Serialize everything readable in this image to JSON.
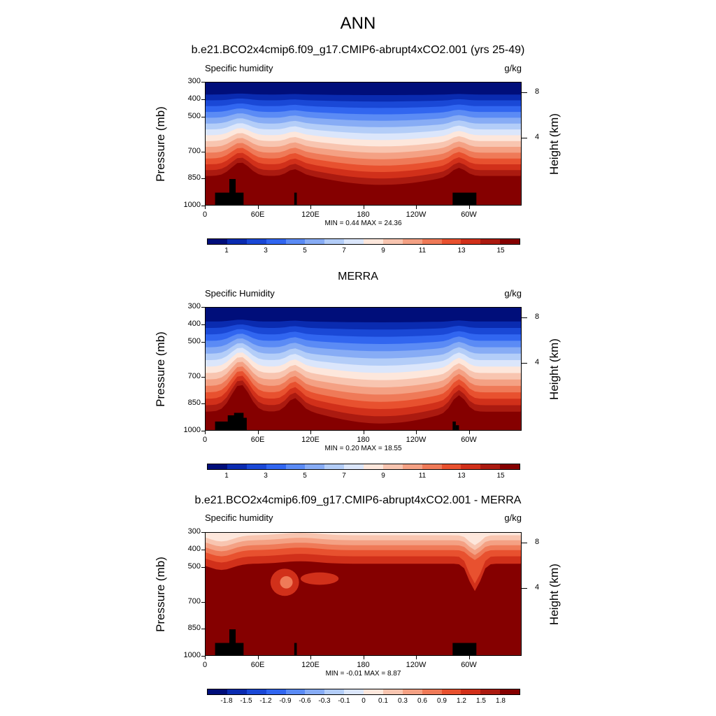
{
  "main_title": "ANN",
  "colors": {
    "abs_scale": [
      "#000e7a",
      "#0a2bb0",
      "#1a48d6",
      "#3166f0",
      "#5b8bf5",
      "#87acf5",
      "#b3cdf8",
      "#dbe6fb",
      "#fde7dc",
      "#f8c5b0",
      "#f4a184",
      "#ef7a58",
      "#e8512f",
      "#d1301a",
      "#ab1a10",
      "#850000"
    ],
    "diff_scale": [
      "#000e7a",
      "#0a2bb0",
      "#1a48d6",
      "#3166f0",
      "#5b8bf5",
      "#87acf5",
      "#b3cdf8",
      "#dbe6fb",
      "#fde7dc",
      "#f8c5b0",
      "#f4a184",
      "#ef7a58",
      "#e8512f",
      "#d1301a",
      "#ab1a10",
      "#850000"
    ],
    "topography": "#000000"
  },
  "panels": [
    {
      "title": "b.e21.BCO2x4cmip6.f09_g17.CMIP6-abrupt4xCO2.001 (yrs 25-49)",
      "left_label": "Specific humidity",
      "right_label": "g/kg",
      "minmax": "MIN =   0.44  MAX =  24.36",
      "y_axis_title": "Pressure (mb)",
      "y2_axis_title": "Height (km)",
      "cbar_labels": [
        "1",
        "3",
        "5",
        "7",
        "9",
        "11",
        "13",
        "15"
      ]
    },
    {
      "title": "MERRA",
      "left_label": "Specific Humidity",
      "right_label": "g/kg",
      "minmax": "MIN =   0.20  MAX =  18.55",
      "y_axis_title": "Pressure (mb)",
      "y2_axis_title": "Height (km)",
      "cbar_labels": [
        "1",
        "3",
        "5",
        "7",
        "9",
        "11",
        "13",
        "15"
      ]
    },
    {
      "title": "b.e21.BCO2x4cmip6.f09_g17.CMIP6-abrupt4xCO2.001 - MERRA",
      "left_label": "Specific humidity",
      "right_label": "g/kg",
      "minmax": "MIN =  -0.01  MAX =   8.87",
      "y_axis_title": "Pressure (mb)",
      "y2_axis_title": "Height (km)",
      "cbar_labels": [
        "-1.8",
        "-1.5",
        "-1.2",
        "-0.9",
        "-0.6",
        "-0.3",
        "-0.1",
        "0",
        "0.1",
        "0.3",
        "0.6",
        "0.9",
        "1.2",
        "1.5",
        "1.8"
      ]
    }
  ],
  "chart_data": [
    {
      "type": "heatmap",
      "title": "b.e21.BCO2x4cmip6.f09_g17.CMIP6-abrupt4xCO2.001 (yrs 25-49)",
      "xlabel": "",
      "ylabel": "Pressure (mb)",
      "y2label": "Height (km)",
      "x_ticks": [
        "0",
        "60E",
        "120E",
        "180",
        "120W",
        "60W"
      ],
      "y_ticks": [
        "300",
        "400",
        "500",
        "700",
        "850",
        "1000"
      ],
      "y2_ticks": [
        "8",
        "4"
      ],
      "levels": [
        1,
        3,
        5,
        7,
        9,
        11,
        13,
        15
      ],
      "units": "g/kg",
      "min": 0.44,
      "max": 24.36
    },
    {
      "type": "heatmap",
      "title": "MERRA",
      "xlabel": "",
      "ylabel": "Pressure (mb)",
      "y2label": "Height (km)",
      "x_ticks": [
        "0",
        "60E",
        "120E",
        "180",
        "120W",
        "60W"
      ],
      "y_ticks": [
        "300",
        "400",
        "500",
        "700",
        "850",
        "1000"
      ],
      "y2_ticks": [
        "8",
        "4"
      ],
      "levels": [
        1,
        3,
        5,
        7,
        9,
        11,
        13,
        15
      ],
      "units": "g/kg",
      "min": 0.2,
      "max": 18.55
    },
    {
      "type": "heatmap",
      "title": "b.e21.BCO2x4cmip6.f09_g17.CMIP6-abrupt4xCO2.001 - MERRA",
      "xlabel": "",
      "ylabel": "Pressure (mb)",
      "y2label": "Height (km)",
      "x_ticks": [
        "0",
        "60E",
        "120E",
        "180",
        "120W",
        "60W"
      ],
      "y_ticks": [
        "300",
        "400",
        "500",
        "700",
        "850",
        "1000"
      ],
      "y2_ticks": [
        "8",
        "4"
      ],
      "levels": [
        -1.8,
        -1.5,
        -1.2,
        -0.9,
        -0.6,
        -0.3,
        -0.1,
        0,
        0.1,
        0.3,
        0.6,
        0.9,
        1.2,
        1.5,
        1.8
      ],
      "units": "g/kg",
      "min": -0.01,
      "max": 8.87
    }
  ]
}
